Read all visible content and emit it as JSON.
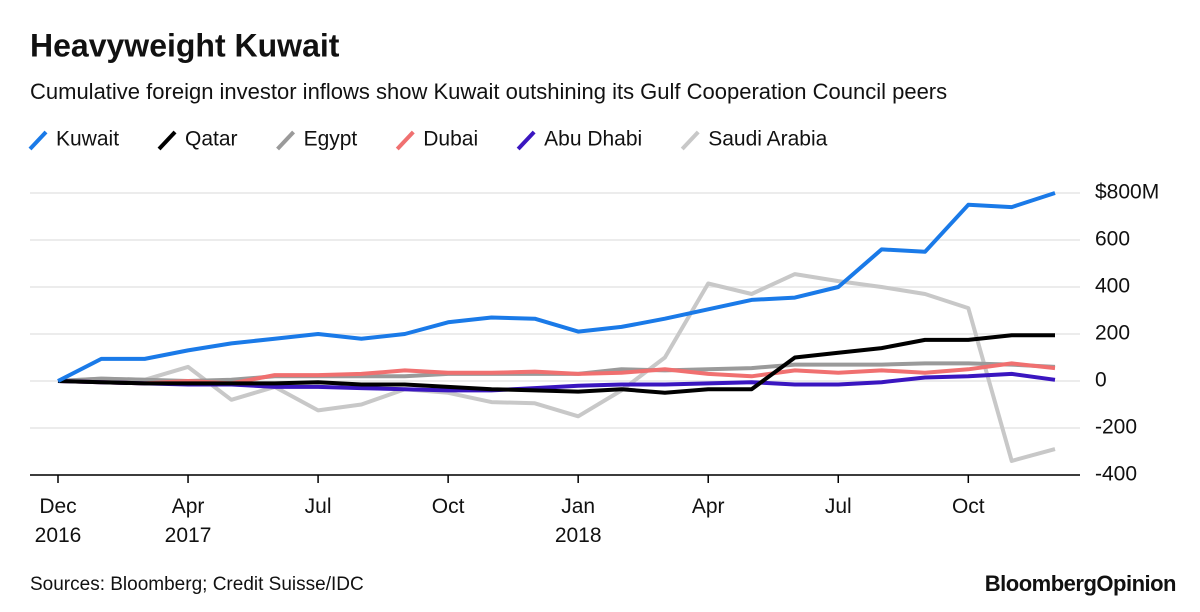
{
  "chart_data": {
    "type": "line",
    "title": "Heavyweight Kuwait",
    "subtitle": "Cumulative foreign investor inflows show Kuwait outshining its Gulf Cooperation Council peers",
    "source": "Sources: Bloomberg; Credit Suisse/IDC",
    "brand": "BloombergOpinion",
    "legend": "top",
    "grid": true,
    "categories": [
      "Dec 2016",
      null,
      null,
      "Apr 2017",
      null,
      null,
      "Jul",
      null,
      null,
      "Oct",
      null,
      null,
      "Jan 2018",
      null,
      null,
      "Apr",
      null,
      null,
      "Jul",
      null,
      null,
      "Oct",
      null,
      null
    ],
    "ylim": [
      -400,
      800
    ],
    "yticks": [
      {
        "value": 800,
        "label": "$800M"
      },
      600,
      400,
      200,
      0,
      -200,
      -400
    ],
    "series": [
      {
        "name": "Kuwait",
        "color": "#1a7ae8",
        "values": [
          0,
          94,
          94,
          130,
          160,
          180,
          200,
          180,
          200,
          250,
          270,
          265,
          210,
          230,
          265,
          305,
          345,
          355,
          400,
          560,
          550,
          750,
          740,
          800
        ]
      },
      {
        "name": "Qatar",
        "color": "#000000",
        "values": [
          0,
          -5,
          -10,
          -10,
          -10,
          -10,
          -5,
          -15,
          -15,
          -25,
          -35,
          -40,
          -45,
          -35,
          -50,
          -35,
          -35,
          100,
          120,
          140,
          175,
          175,
          195,
          195
        ]
      },
      {
        "name": "Egypt",
        "color": "#9a9a9a",
        "values": [
          0,
          10,
          5,
          0,
          5,
          20,
          20,
          20,
          20,
          30,
          30,
          30,
          30,
          50,
          45,
          50,
          55,
          70,
          70,
          70,
          75,
          75,
          70,
          60
        ]
      },
      {
        "name": "Dubai",
        "color": "#f07070",
        "values": [
          0,
          -5,
          -10,
          0,
          -10,
          25,
          25,
          30,
          45,
          35,
          35,
          40,
          30,
          35,
          50,
          30,
          20,
          45,
          35,
          45,
          35,
          50,
          75,
          55
        ]
      },
      {
        "name": "Abu Dhabi",
        "color": "#3a16c0",
        "values": [
          0,
          -5,
          -10,
          -15,
          -15,
          -25,
          -25,
          -30,
          -35,
          -40,
          -40,
          -30,
          -20,
          -15,
          -15,
          -10,
          -5,
          -15,
          -15,
          -5,
          15,
          20,
          30,
          5
        ]
      },
      {
        "name": "Saudi Arabia",
        "color": "#c8c8c8",
        "values": [
          0,
          10,
          5,
          60,
          -80,
          -25,
          -125,
          -100,
          -35,
          -50,
          -90,
          -95,
          -150,
          -40,
          100,
          415,
          370,
          455,
          425,
          400,
          370,
          310,
          -340,
          -290
        ]
      }
    ]
  }
}
